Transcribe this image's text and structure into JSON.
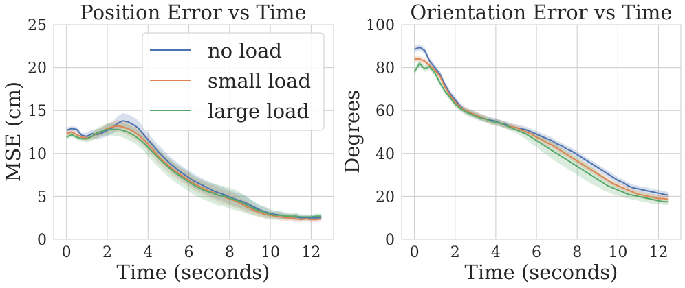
{
  "chart_data": [
    {
      "type": "line",
      "title": "Position Error vs Time",
      "xlabel": "Time (seconds)",
      "ylabel": "MSE (cm)",
      "xlim": [
        -0.63,
        13.1
      ],
      "ylim": [
        0,
        25
      ],
      "xticks": [
        "0",
        "2",
        "4",
        "6",
        "8",
        "10",
        "12"
      ],
      "yticks": [
        "0",
        "5",
        "10",
        "15",
        "20",
        "25"
      ],
      "grid": true,
      "legend_position": "top-right",
      "x": [
        0,
        0.25,
        0.5,
        0.75,
        1,
        1.25,
        1.5,
        1.75,
        2,
        2.25,
        2.5,
        2.75,
        3,
        3.25,
        3.5,
        3.75,
        4,
        4.25,
        4.5,
        4.75,
        5,
        5.25,
        5.5,
        5.75,
        6,
        6.25,
        6.5,
        6.75,
        7,
        7.25,
        7.5,
        7.75,
        8,
        8.25,
        8.5,
        8.75,
        9,
        9.25,
        9.5,
        9.75,
        10,
        10.25,
        10.5,
        10.75,
        11,
        11.25,
        11.5,
        11.75,
        12,
        12.25,
        12.5
      ],
      "series": [
        {
          "name": "no load",
          "color": "#4c72b0",
          "values": [
            12.7,
            12.9,
            12.8,
            12.1,
            12.0,
            12.3,
            12.2,
            12.4,
            12.7,
            13.0,
            13.5,
            13.8,
            13.7,
            13.4,
            13.0,
            12.3,
            11.6,
            10.9,
            10.2,
            9.6,
            9.0,
            8.5,
            8.0,
            7.6,
            7.2,
            6.8,
            6.5,
            6.2,
            5.9,
            5.6,
            5.4,
            5.2,
            4.9,
            4.7,
            4.5,
            4.3,
            4.0,
            3.7,
            3.4,
            3.2,
            3.0,
            2.9,
            2.8,
            2.7,
            2.6,
            2.6,
            2.5,
            2.5,
            2.5,
            2.5,
            2.5
          ],
          "lower": [
            12.4,
            12.6,
            12.5,
            11.8,
            11.6,
            11.8,
            11.6,
            11.8,
            12.0,
            12.3,
            12.7,
            12.9,
            12.8,
            12.5,
            12.1,
            11.5,
            10.8,
            10.1,
            9.4,
            8.8,
            8.2,
            7.7,
            7.2,
            6.8,
            6.4,
            6.0,
            5.7,
            5.4,
            5.1,
            4.8,
            4.6,
            4.4,
            4.1,
            3.9,
            3.7,
            3.5,
            3.3,
            3.1,
            2.9,
            2.7,
            2.6,
            2.5,
            2.4,
            2.3,
            2.3,
            2.2,
            2.2,
            2.2,
            2.2,
            2.2,
            2.2
          ],
          "upper": [
            13.0,
            13.2,
            13.1,
            12.4,
            12.4,
            12.8,
            12.8,
            13.0,
            13.4,
            13.7,
            14.3,
            14.7,
            14.6,
            14.3,
            13.9,
            13.1,
            12.4,
            11.7,
            11.0,
            10.4,
            9.8,
            9.3,
            8.8,
            8.4,
            8.0,
            7.6,
            7.3,
            7.0,
            6.7,
            6.4,
            6.2,
            6.0,
            5.7,
            5.5,
            5.3,
            5.1,
            4.7,
            4.3,
            3.9,
            3.7,
            3.4,
            3.3,
            3.2,
            3.1,
            2.9,
            3.0,
            2.8,
            2.8,
            2.8,
            2.8,
            2.8
          ]
        },
        {
          "name": "small load",
          "color": "#dd8452",
          "values": [
            12.3,
            12.5,
            12.2,
            11.9,
            11.8,
            12.0,
            12.3,
            12.6,
            12.9,
            13.1,
            13.2,
            13.1,
            12.9,
            12.6,
            12.2,
            11.7,
            11.1,
            10.4,
            9.7,
            9.1,
            8.6,
            8.1,
            7.7,
            7.3,
            6.9,
            6.5,
            6.2,
            5.9,
            5.6,
            5.4,
            5.1,
            4.9,
            4.7,
            4.5,
            4.2,
            3.9,
            3.6,
            3.3,
            3.1,
            2.9,
            2.8,
            2.7,
            2.6,
            2.5,
            2.5,
            2.4,
            2.3,
            2.4,
            2.3,
            2.3,
            2.4
          ],
          "lower": [
            12.0,
            12.2,
            11.9,
            11.6,
            11.5,
            11.6,
            11.8,
            12.1,
            12.3,
            12.5,
            12.5,
            12.4,
            12.1,
            11.8,
            11.4,
            10.9,
            10.3,
            9.6,
            8.9,
            8.3,
            7.8,
            7.3,
            6.9,
            6.5,
            6.1,
            5.7,
            5.4,
            5.1,
            4.8,
            4.6,
            4.3,
            4.1,
            3.9,
            3.7,
            3.5,
            3.2,
            3.0,
            2.8,
            2.6,
            2.5,
            2.4,
            2.3,
            2.2,
            2.1,
            2.1,
            2.0,
            2.0,
            2.1,
            2.0,
            2.0,
            2.1
          ],
          "upper": [
            12.6,
            12.8,
            12.5,
            12.2,
            12.1,
            12.4,
            12.8,
            13.1,
            13.5,
            13.7,
            13.9,
            13.8,
            13.7,
            13.4,
            13.0,
            12.5,
            11.9,
            11.2,
            10.5,
            9.9,
            9.4,
            8.9,
            8.5,
            8.1,
            7.7,
            7.3,
            7.0,
            6.7,
            6.4,
            6.2,
            5.9,
            5.7,
            5.5,
            5.3,
            4.9,
            4.6,
            4.2,
            3.8,
            3.6,
            3.3,
            3.2,
            3.1,
            3.0,
            2.9,
            2.9,
            2.8,
            2.6,
            2.7,
            2.6,
            2.6,
            2.7
          ]
        },
        {
          "name": "large load",
          "color": "#55a868",
          "values": [
            11.9,
            12.2,
            11.9,
            11.7,
            11.7,
            12.0,
            12.4,
            12.6,
            12.8,
            12.8,
            12.8,
            12.7,
            12.5,
            12.2,
            11.8,
            11.3,
            10.7,
            10.1,
            9.5,
            8.9,
            8.4,
            7.9,
            7.5,
            7.1,
            6.7,
            6.3,
            6.0,
            5.7,
            5.5,
            5.3,
            5.1,
            5.0,
            4.8,
            4.6,
            4.4,
            4.1,
            3.8,
            3.5,
            3.3,
            3.1,
            2.9,
            2.8,
            2.8,
            2.7,
            2.7,
            2.7,
            2.6,
            2.6,
            2.6,
            2.7,
            2.7
          ],
          "lower": [
            11.6,
            11.9,
            11.6,
            11.4,
            11.3,
            11.5,
            11.8,
            12.0,
            12.1,
            12.1,
            12.0,
            11.9,
            11.6,
            11.3,
            10.9,
            10.4,
            9.7,
            9.0,
            8.4,
            7.8,
            7.3,
            6.8,
            6.4,
            6.0,
            5.6,
            5.2,
            4.9,
            4.6,
            4.4,
            4.1,
            3.9,
            3.8,
            3.6,
            3.4,
            3.3,
            3.1,
            2.9,
            2.7,
            2.6,
            2.4,
            2.3,
            2.3,
            2.3,
            2.3,
            2.3,
            2.3,
            2.3,
            2.3,
            2.3,
            2.4,
            2.4
          ],
          "upper": [
            12.2,
            12.5,
            12.2,
            12.0,
            12.1,
            12.5,
            13.0,
            13.2,
            13.5,
            13.5,
            13.6,
            13.5,
            13.4,
            13.1,
            12.7,
            12.2,
            11.7,
            11.2,
            10.6,
            10.0,
            9.5,
            9.0,
            8.6,
            8.2,
            7.8,
            7.4,
            7.1,
            6.8,
            6.6,
            6.5,
            6.3,
            6.2,
            6.0,
            5.8,
            5.5,
            5.1,
            4.7,
            4.3,
            4.0,
            3.8,
            3.5,
            3.3,
            3.3,
            3.1,
            3.1,
            3.1,
            2.9,
            2.9,
            2.9,
            3.0,
            3.0
          ]
        }
      ]
    },
    {
      "type": "line",
      "title": "Orientation Error vs Time",
      "xlabel": "Time (seconds)",
      "ylabel": "Degrees",
      "xlim": [
        -0.63,
        13.1
      ],
      "ylim": [
        0,
        100
      ],
      "xticks": [
        "0",
        "2",
        "4",
        "6",
        "8",
        "10",
        "12"
      ],
      "yticks": [
        "0",
        "20",
        "40",
        "60",
        "80",
        "100"
      ],
      "grid": true,
      "x": [
        0,
        0.25,
        0.5,
        0.75,
        1,
        1.25,
        1.5,
        1.75,
        2,
        2.25,
        2.5,
        2.75,
        3,
        3.25,
        3.5,
        3.75,
        4,
        4.25,
        4.5,
        4.75,
        5,
        5.25,
        5.5,
        5.75,
        6,
        6.25,
        6.5,
        6.75,
        7,
        7.25,
        7.5,
        7.75,
        8,
        8.25,
        8.5,
        8.75,
        9,
        9.25,
        9.5,
        9.75,
        10,
        10.25,
        10.5,
        10.75,
        11,
        11.25,
        11.5,
        11.75,
        12,
        12.25,
        12.5
      ],
      "series": [
        {
          "name": "no load",
          "color": "#4c72b0",
          "values": [
            88.5,
            89.5,
            88.0,
            83.0,
            80.0,
            77.0,
            72.0,
            68.0,
            65.0,
            62.0,
            60.0,
            59.0,
            58.0,
            57.0,
            56.0,
            55.5,
            55.0,
            54.0,
            53.5,
            52.5,
            52.0,
            51.5,
            51.0,
            50.0,
            49.0,
            48.0,
            47.0,
            46.0,
            44.5,
            43.5,
            42.0,
            41.0,
            39.5,
            38.0,
            36.5,
            35.0,
            33.5,
            32.0,
            30.5,
            29.0,
            27.5,
            26.5,
            25.0,
            24.0,
            23.5,
            23.0,
            22.5,
            22.0,
            21.5,
            21.0,
            20.5
          ],
          "lower": [
            87.0,
            88.0,
            86.5,
            81.5,
            78.5,
            75.5,
            70.5,
            66.5,
            63.5,
            60.5,
            58.5,
            57.5,
            56.5,
            55.5,
            54.5,
            54.0,
            53.5,
            52.5,
            52.0,
            51.0,
            50.5,
            50.0,
            49.5,
            48.5,
            47.5,
            46.5,
            45.5,
            44.5,
            43.0,
            42.0,
            40.5,
            39.5,
            38.0,
            36.5,
            35.0,
            33.5,
            32.0,
            30.5,
            29.0,
            27.5,
            26.0,
            25.0,
            23.5,
            22.5,
            22.0,
            21.5,
            21.0,
            20.5,
            20.0,
            19.5,
            19.0
          ],
          "upper": [
            90.0,
            91.0,
            89.5,
            84.5,
            81.5,
            78.5,
            73.5,
            69.5,
            66.5,
            63.5,
            61.5,
            60.5,
            59.5,
            58.5,
            57.5,
            57.0,
            56.5,
            55.5,
            55.0,
            54.0,
            53.5,
            53.0,
            52.5,
            51.5,
            50.5,
            49.5,
            48.5,
            47.5,
            46.0,
            45.0,
            43.5,
            42.5,
            41.0,
            39.5,
            38.0,
            36.5,
            35.0,
            33.5,
            32.0,
            30.5,
            29.0,
            28.0,
            26.5,
            25.5,
            25.0,
            24.5,
            24.0,
            23.5,
            23.0,
            22.5,
            22.0
          ]
        },
        {
          "name": "small load",
          "color": "#dd8452",
          "values": [
            84.0,
            84.0,
            83.0,
            81.0,
            79.0,
            76.0,
            71.0,
            67.0,
            64.0,
            61.5,
            60.0,
            59.0,
            58.0,
            57.0,
            56.0,
            55.0,
            54.5,
            54.0,
            53.0,
            52.5,
            52.0,
            51.0,
            50.0,
            49.0,
            47.5,
            46.5,
            45.0,
            44.0,
            42.5,
            41.0,
            39.5,
            38.0,
            36.5,
            35.0,
            33.5,
            32.0,
            30.5,
            29.0,
            27.5,
            26.0,
            25.0,
            24.0,
            23.0,
            22.0,
            21.0,
            20.5,
            20.0,
            19.5,
            19.0,
            19.0,
            18.5
          ],
          "lower": [
            82.5,
            82.5,
            81.5,
            79.5,
            77.5,
            74.5,
            69.5,
            65.5,
            62.5,
            60.0,
            58.5,
            57.5,
            56.5,
            55.5,
            54.5,
            53.5,
            53.0,
            52.5,
            51.5,
            51.0,
            50.5,
            49.5,
            48.5,
            47.5,
            46.0,
            45.0,
            43.5,
            42.5,
            41.0,
            39.5,
            38.0,
            36.5,
            35.0,
            33.5,
            32.0,
            30.5,
            29.0,
            27.5,
            26.0,
            24.5,
            23.5,
            22.5,
            21.5,
            20.5,
            19.5,
            19.0,
            18.5,
            18.0,
            17.5,
            17.5,
            17.0
          ],
          "upper": [
            85.5,
            85.5,
            84.5,
            82.5,
            80.5,
            77.5,
            72.5,
            68.5,
            65.5,
            63.0,
            61.5,
            60.5,
            59.5,
            58.5,
            57.5,
            56.5,
            56.0,
            55.5,
            54.5,
            54.0,
            53.5,
            52.5,
            51.5,
            50.5,
            49.0,
            48.0,
            46.5,
            45.5,
            44.0,
            42.5,
            41.0,
            39.5,
            38.0,
            36.5,
            35.0,
            33.5,
            32.0,
            30.5,
            29.0,
            27.5,
            26.5,
            25.5,
            24.5,
            23.5,
            22.5,
            22.0,
            21.5,
            21.0,
            20.5,
            20.5,
            20.0
          ]
        },
        {
          "name": "large load",
          "color": "#55a868",
          "values": [
            78.0,
            82.0,
            79.5,
            80.5,
            77.5,
            73.0,
            69.0,
            66.0,
            63.0,
            61.0,
            59.5,
            58.5,
            57.5,
            56.5,
            56.0,
            55.0,
            54.5,
            54.0,
            53.0,
            52.0,
            51.0,
            50.0,
            49.0,
            47.5,
            46.0,
            44.5,
            43.0,
            41.5,
            40.0,
            38.5,
            37.0,
            35.5,
            34.0,
            32.5,
            31.0,
            29.5,
            28.0,
            26.5,
            25.0,
            24.0,
            23.0,
            22.0,
            21.0,
            20.5,
            20.0,
            19.5,
            19.0,
            18.5,
            18.0,
            17.5,
            17.5
          ],
          "lower": [
            76.5,
            80.5,
            78.0,
            79.0,
            76.0,
            71.5,
            67.5,
            64.5,
            61.5,
            59.5,
            58.0,
            57.0,
            56.0,
            55.0,
            54.5,
            53.5,
            53.0,
            52.5,
            51.5,
            50.5,
            49.5,
            48.0,
            46.5,
            44.5,
            43.0,
            41.0,
            39.5,
            37.5,
            36.0,
            34.5,
            33.0,
            31.5,
            30.0,
            28.5,
            27.0,
            25.5,
            24.5,
            23.0,
            22.0,
            21.0,
            20.5,
            19.5,
            19.0,
            18.5,
            18.0,
            17.5,
            17.0,
            16.5,
            16.5,
            16.0,
            16.0
          ],
          "upper": [
            79.5,
            83.5,
            81.0,
            82.0,
            79.0,
            74.5,
            70.5,
            67.5,
            64.5,
            62.5,
            61.0,
            60.0,
            59.0,
            58.0,
            57.5,
            56.5,
            56.0,
            55.5,
            54.5,
            53.5,
            52.5,
            52.0,
            51.5,
            50.5,
            49.0,
            48.0,
            46.5,
            45.5,
            44.0,
            42.5,
            41.0,
            39.5,
            38.0,
            36.5,
            35.0,
            33.5,
            31.5,
            30.0,
            28.0,
            27.0,
            25.5,
            24.5,
            23.0,
            22.5,
            22.0,
            21.5,
            21.0,
            20.5,
            19.5,
            19.0,
            19.0
          ]
        }
      ]
    }
  ]
}
